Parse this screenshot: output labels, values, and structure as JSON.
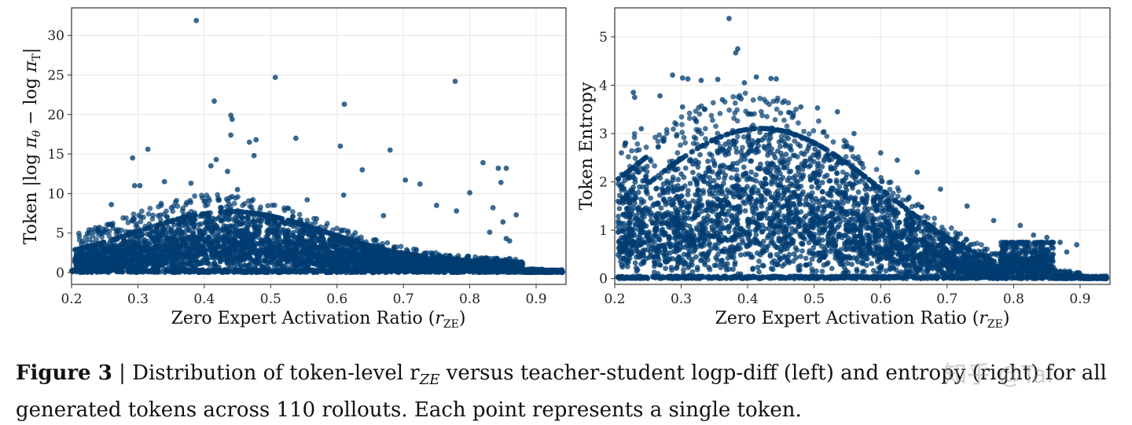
{
  "chart_data": [
    {
      "type": "scatter",
      "panel": "left",
      "xlabel": "Zero Expert Activation Ratio (r_ZE)",
      "ylabel": "Token |log πθ − log πT|",
      "xlim": [
        0.2,
        0.945
      ],
      "ylim": [
        -1.5,
        33.5
      ],
      "xticks": [
        "0.2",
        "0.3",
        "0.4",
        "0.5",
        "0.6",
        "0.7",
        "0.8",
        "0.9"
      ],
      "yticks": [
        "0",
        "5",
        "10",
        "15",
        "20",
        "25",
        "30"
      ],
      "grid": true,
      "color": "#003c71",
      "outliers": [
        [
          0.388,
          31.9
        ],
        [
          0.507,
          24.7
        ],
        [
          0.778,
          24.2
        ],
        [
          0.415,
          21.7
        ],
        [
          0.611,
          21.3
        ],
        [
          0.44,
          19.9
        ],
        [
          0.442,
          19.4
        ],
        [
          0.44,
          17.4
        ],
        [
          0.538,
          17.0
        ],
        [
          0.468,
          16.5
        ],
        [
          0.478,
          16.8
        ],
        [
          0.605,
          16.0
        ],
        [
          0.315,
          15.6
        ],
        [
          0.68,
          15.5
        ],
        [
          0.475,
          14.8
        ],
        [
          0.292,
          14.5
        ],
        [
          0.418,
          14.3
        ],
        [
          0.82,
          13.9
        ],
        [
          0.41,
          13.5
        ],
        [
          0.843,
          13.2
        ],
        [
          0.855,
          13.2
        ],
        [
          0.638,
          13.0
        ],
        [
          0.435,
          12.8
        ],
        [
          0.703,
          11.7
        ],
        [
          0.847,
          11.4
        ],
        [
          0.725,
          11.2
        ],
        [
          0.295,
          11.0
        ],
        [
          0.303,
          11.0
        ],
        [
          0.34,
          11.5
        ],
        [
          0.38,
          11.3
        ],
        [
          0.61,
          9.8
        ],
        [
          0.45,
          10.5
        ],
        [
          0.8,
          10.1
        ],
        [
          0.26,
          8.6
        ],
        [
          0.555,
          9.2
        ],
        [
          0.75,
          8.5
        ],
        [
          0.835,
          8.2
        ],
        [
          0.78,
          7.8
        ],
        [
          0.87,
          7.3
        ],
        [
          0.67,
          7.2
        ],
        [
          0.24,
          3.5
        ],
        [
          0.215,
          3.6
        ],
        [
          0.855,
          4.3
        ],
        [
          0.85,
          6.4
        ],
        [
          0.83,
          5.1
        ],
        [
          0.86,
          4.0
        ]
      ]
    },
    {
      "type": "scatter",
      "panel": "right",
      "xlabel": "Zero Expert Activation Ratio (r_ZE)",
      "ylabel": "Token Entropy",
      "xlim": [
        0.2,
        0.945
      ],
      "ylim": [
        -0.12,
        5.6
      ],
      "xticks": [
        "0.2",
        "0.3",
        "0.4",
        "0.5",
        "0.6",
        "0.7",
        "0.8",
        "0.9"
      ],
      "yticks": [
        "0",
        "1",
        "2",
        "3",
        "4",
        "5"
      ],
      "grid": true,
      "color": "#003c71",
      "outliers": [
        [
          0.372,
          5.38
        ],
        [
          0.385,
          4.75
        ],
        [
          0.382,
          4.67
        ],
        [
          0.287,
          4.21
        ],
        [
          0.302,
          4.15
        ],
        [
          0.31,
          4.13
        ],
        [
          0.33,
          4.1
        ],
        [
          0.355,
          4.12
        ],
        [
          0.413,
          4.17
        ],
        [
          0.435,
          4.14
        ],
        [
          0.443,
          4.13
        ],
        [
          0.395,
          4.05
        ],
        [
          0.228,
          3.85
        ],
        [
          0.23,
          3.75
        ],
        [
          0.268,
          3.78
        ],
        [
          0.302,
          3.55
        ],
        [
          0.335,
          3.5
        ],
        [
          0.362,
          3.7
        ],
        [
          0.39,
          3.72
        ],
        [
          0.48,
          3.55
        ],
        [
          0.505,
          3.53
        ],
        [
          0.535,
          3.45
        ],
        [
          0.24,
          3.1
        ],
        [
          0.215,
          2.75
        ],
        [
          0.21,
          2.6
        ],
        [
          0.56,
          3.0
        ],
        [
          0.6,
          2.6
        ],
        [
          0.625,
          2.45
        ],
        [
          0.655,
          2.2
        ],
        [
          0.69,
          1.85
        ],
        [
          0.81,
          1.1
        ],
        [
          0.83,
          0.9
        ],
        [
          0.85,
          0.85
        ],
        [
          0.87,
          0.75
        ],
        [
          0.895,
          0.7
        ],
        [
          0.88,
          0.55
        ],
        [
          0.73,
          1.5
        ],
        [
          0.77,
          1.2
        ],
        [
          0.205,
          1.6
        ],
        [
          0.21,
          1.9
        ]
      ]
    }
  ],
  "caption": {
    "label": "Figure 3",
    "sep": " | ",
    "text": "Distribution of token-level r",
    "sub": "ZE",
    "text2": " versus teacher-student logp-diff (left) and entropy (right) for all generated tokens across 110 rollouts. Each point represents a single token."
  },
  "watermark": "知乎 @Tai"
}
